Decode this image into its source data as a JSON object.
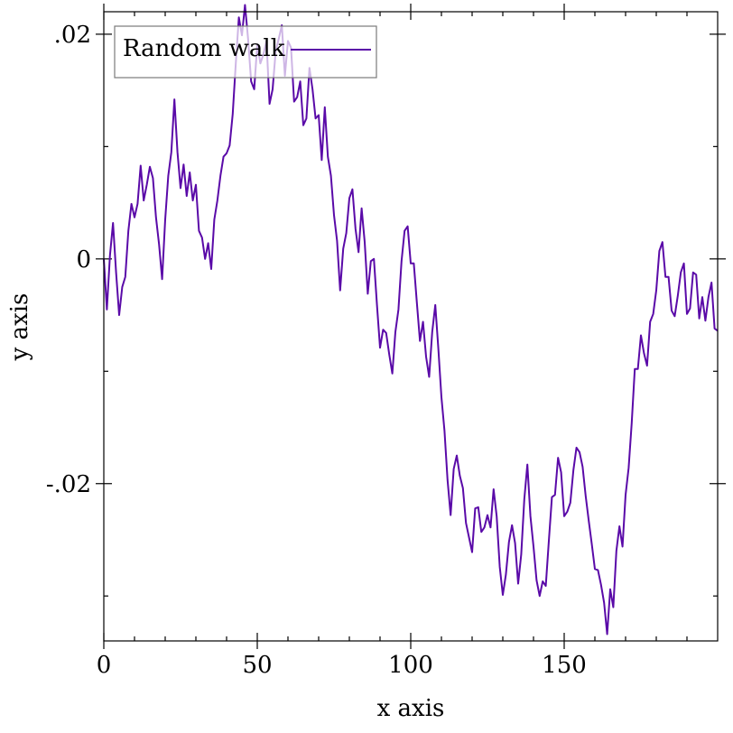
{
  "chart_data": {
    "type": "line",
    "xlabel": "x axis",
    "ylabel": "y axis",
    "xlim": [
      0,
      200
    ],
    "ylim": [
      -0.034,
      0.022
    ],
    "x_ticks": [
      {
        "value": 0,
        "label": "0"
      },
      {
        "value": 50,
        "label": "50"
      },
      {
        "value": 100,
        "label": "100"
      },
      {
        "value": 150,
        "label": "150"
      }
    ],
    "y_ticks": [
      {
        "value": -0.02,
        "label": "-.02"
      },
      {
        "value": 0,
        "label": "0"
      },
      {
        "value": 0.02,
        "label": ".02"
      }
    ],
    "legend": {
      "position": "top-left"
    },
    "series": [
      {
        "name": "Random walk",
        "color": "#5a0aa8",
        "x_start": 0,
        "x_step": 1,
        "values": [
          0.0,
          -0.0045,
          0.0003,
          0.0032,
          -0.0012,
          -0.005,
          -0.0025,
          -0.0016,
          0.0025,
          0.0049,
          0.0037,
          0.0049,
          0.0083,
          0.0052,
          0.0066,
          0.0082,
          0.0072,
          0.0037,
          0.0013,
          -0.0018,
          0.0035,
          0.0074,
          0.0095,
          0.0142,
          0.0095,
          0.0063,
          0.0084,
          0.0056,
          0.0077,
          0.0052,
          0.0066,
          0.0025,
          0.0019,
          0.0,
          0.0014,
          -0.0009,
          0.0035,
          0.0052,
          0.0074,
          0.0091,
          0.0094,
          0.0101,
          0.0129,
          0.0174,
          0.0215,
          0.0199,
          0.0226,
          0.0196,
          0.0158,
          0.0151,
          0.0191,
          0.0174,
          0.0182,
          0.0194,
          0.0138,
          0.0151,
          0.0185,
          0.0196,
          0.0208,
          0.0163,
          0.0194,
          0.0188,
          0.014,
          0.0144,
          0.0158,
          0.0119,
          0.0125,
          0.017,
          0.0151,
          0.0125,
          0.0128,
          0.0088,
          0.0135,
          0.0091,
          0.0074,
          0.0039,
          0.0016,
          -0.0028,
          0.0009,
          0.0023,
          0.0054,
          0.0062,
          0.0027,
          0.0006,
          0.0045,
          0.0015,
          -0.0031,
          -0.0002,
          0.0,
          -0.0041,
          -0.0079,
          -0.0063,
          -0.0066,
          -0.0085,
          -0.0102,
          -0.0065,
          -0.0045,
          -0.0002,
          0.0025,
          0.0029,
          -0.0004,
          -0.0004,
          -0.0039,
          -0.0073,
          -0.0056,
          -0.0087,
          -0.0105,
          -0.0065,
          -0.0041,
          -0.008,
          -0.0123,
          -0.0153,
          -0.0197,
          -0.0228,
          -0.0187,
          -0.0175,
          -0.0193,
          -0.0204,
          -0.0235,
          -0.0248,
          -0.0261,
          -0.0222,
          -0.0221,
          -0.0243,
          -0.0239,
          -0.0228,
          -0.0239,
          -0.0205,
          -0.0229,
          -0.0274,
          -0.0299,
          -0.0281,
          -0.0252,
          -0.0237,
          -0.0253,
          -0.0289,
          -0.0263,
          -0.0214,
          -0.0183,
          -0.0229,
          -0.0256,
          -0.0286,
          -0.03,
          -0.0287,
          -0.0291,
          -0.0251,
          -0.0212,
          -0.021,
          -0.0177,
          -0.019,
          -0.0229,
          -0.0225,
          -0.0217,
          -0.0188,
          -0.0168,
          -0.0172,
          -0.0185,
          -0.0211,
          -0.0233,
          -0.0254,
          -0.0276,
          -0.0277,
          -0.029,
          -0.0306,
          -0.0334,
          -0.0294,
          -0.031,
          -0.026,
          -0.0238,
          -0.0256,
          -0.021,
          -0.0186,
          -0.0146,
          -0.0098,
          -0.0098,
          -0.0068,
          -0.0084,
          -0.0095,
          -0.0056,
          -0.0049,
          -0.0028,
          0.0007,
          0.0015,
          -0.0016,
          -0.0016,
          -0.0046,
          -0.0051,
          -0.0033,
          -0.0012,
          -0.0004,
          -0.0049,
          -0.0044,
          -0.0012,
          -0.0014,
          -0.0053,
          -0.0034,
          -0.0055,
          -0.0034,
          -0.0021,
          -0.0062,
          -0.0064
        ]
      }
    ]
  }
}
